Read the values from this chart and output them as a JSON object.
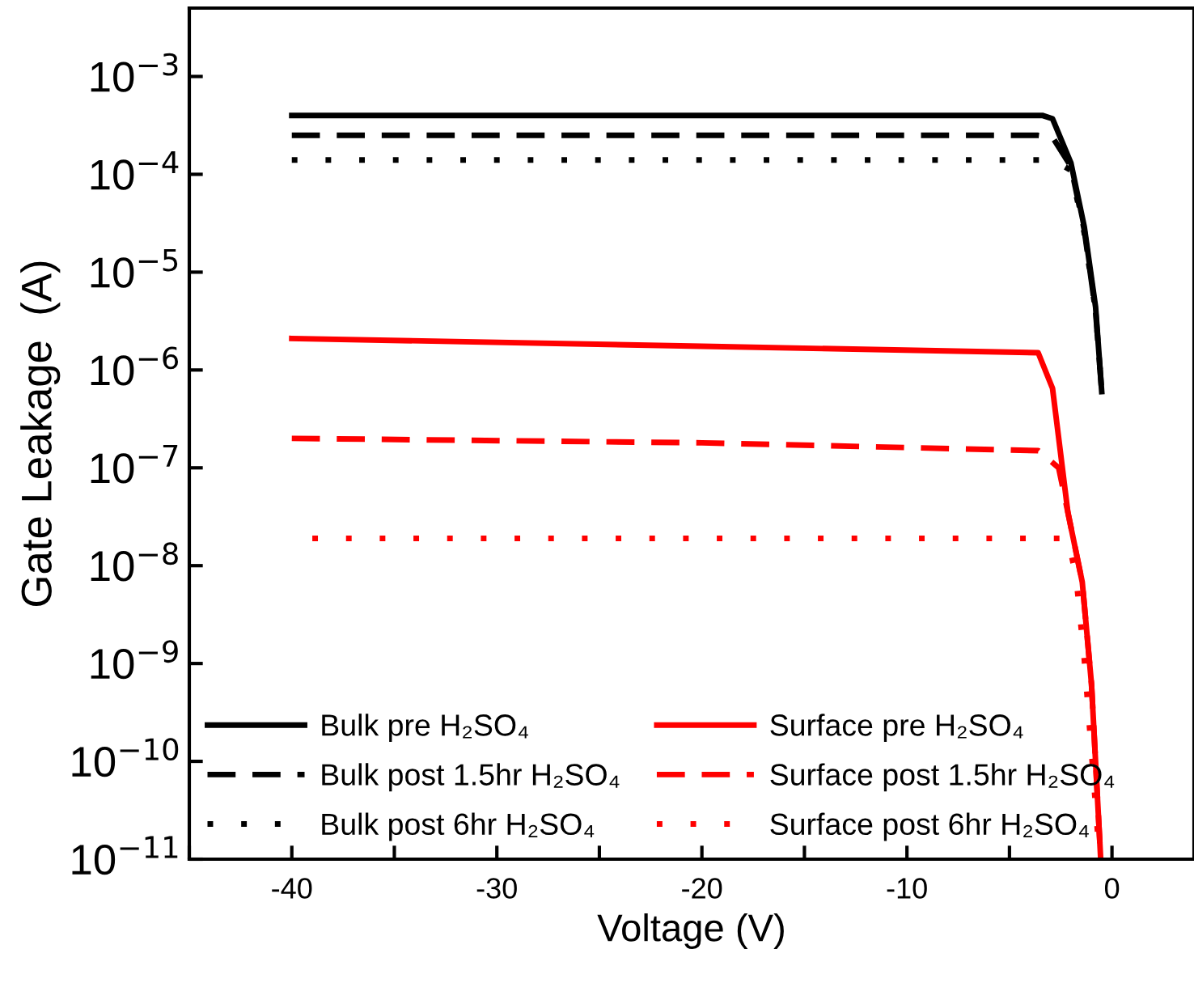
{
  "chart_data": {
    "type": "line",
    "xlabel": "Voltage (V)",
    "ylabel": "Gate Leakage  (A)",
    "log": "y",
    "xlim": [
      -45,
      4
    ],
    "ylim": [
      1e-11,
      0.005
    ],
    "xticks": [
      {
        "value": -45,
        "label": null
      },
      -40,
      {
        "value": -35,
        "label": null
      },
      -30,
      {
        "value": -25,
        "label": null
      },
      -20,
      {
        "value": -15,
        "label": null
      },
      -10,
      {
        "value": -5,
        "label": null
      },
      0
    ],
    "yticks": [
      {
        "value": 0.001,
        "label": "10$^{−3}$"
      },
      {
        "value": 0.0001,
        "label": "10$^{−4}$"
      },
      {
        "value": 1e-05,
        "label": "10$^{−5}$"
      },
      {
        "value": 1e-06,
        "label": "10$^{−6}$"
      },
      {
        "value": 1e-07,
        "label": "10$^{−7}$"
      },
      {
        "value": 1e-08,
        "label": "10$^{−8}$"
      },
      {
        "value": 1e-09,
        "label": "10$^{−9}$"
      },
      {
        "value": 1e-10,
        "label": "10$^{−10}$"
      },
      {
        "value": 1e-11,
        "label": "10$^{−11}$"
      }
    ],
    "grid": false,
    "legend": "bottom left",
    "series": [
      {
        "name": "Bulk pre H₂SO₄",
        "color": "#000000",
        "line_style": "solid",
        "x": [
          -40,
          -20,
          -3.4,
          -2.9,
          -2.0,
          -1.35,
          -0.8,
          -0.5
        ],
        "values": [
          0.0004,
          0.0004,
          0.0004,
          0.00037,
          0.00013,
          2.9e-05,
          4.4e-06,
          6e-07
        ]
      },
      {
        "name": "Bulk post 1.5hr H₂SO₄",
        "color": "#000000",
        "line_style": "dashed",
        "x": [
          -40,
          -20,
          -3.6,
          -2.9,
          -2.0,
          -1.35,
          -0.8,
          -0.5
        ],
        "values": [
          0.00025,
          0.00025,
          0.00025,
          0.00024,
          0.00012,
          2.7e-05,
          4e-06,
          6e-07
        ]
      },
      {
        "name": "Bulk post 6hr H₂SO₄",
        "color": "#000000",
        "line_style": "dotted",
        "x": [
          -40,
          -20,
          -2.9,
          -2.0,
          -1.35,
          -0.8,
          -0.5
        ],
        "values": [
          0.00014,
          0.00014,
          0.00014,
          0.00011,
          2.5e-05,
          4e-06,
          6e-07
        ]
      },
      {
        "name": "Surface pre H₂SO₄",
        "color": "#ff0000",
        "line_style": "solid",
        "x": [
          -40,
          -20,
          -3.6,
          -2.9,
          -2.15,
          -1.45,
          -1.0,
          -0.55
        ],
        "values": [
          2.1e-06,
          1.75e-06,
          1.5e-06,
          6.5e-07,
          3.5e-08,
          6.8e-09,
          6.2e-10,
          1e-11
        ]
      },
      {
        "name": "Surface post 1.5hr H₂SO₄",
        "color": "#ff0000",
        "line_style": "dashed",
        "x": [
          -40,
          -20,
          -3.6,
          -2.6,
          -2.15,
          -1.45,
          -1.0,
          -0.55
        ],
        "values": [
          2e-07,
          1.8e-07,
          1.5e-07,
          1e-07,
          3.5e-08,
          6.8e-09,
          6.2e-10,
          1e-11
        ]
      },
      {
        "name": "Surface post 6hr H₂SO₄",
        "color": "#ff0000",
        "line_style": "dotted",
        "x": [
          -39,
          -20,
          -2.15,
          -1.75,
          -1.35,
          -0.95,
          -0.65
        ],
        "values": [
          1.9e-08,
          1.9e-08,
          1.9e-08,
          7.6e-09,
          1.1e-09,
          9e-11,
          1.35e-11
        ]
      }
    ]
  }
}
